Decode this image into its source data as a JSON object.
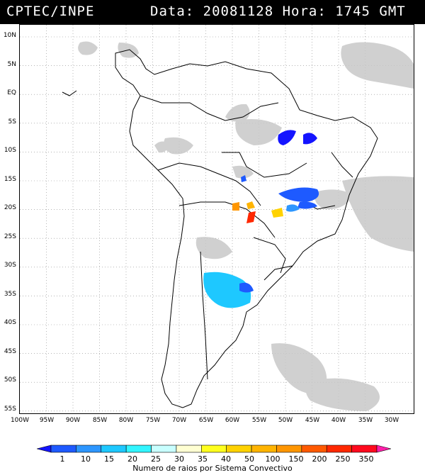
{
  "header": {
    "source": "CPTEC/INPE",
    "datetime": "Data: 20081128 Hora: 1745 GMT"
  },
  "map": {
    "lat_labels": [
      "10N",
      "5N",
      "EQ",
      "5S",
      "10S",
      "15S",
      "20S",
      "25S",
      "30S",
      "35S",
      "40S",
      "45S",
      "50S",
      "55S"
    ],
    "lon_labels": [
      "100W",
      "95W",
      "90W",
      "85W",
      "80W",
      "75W",
      "70W",
      "65W",
      "60W",
      "55W",
      "50W",
      "45W",
      "40W",
      "35W",
      "30W"
    ],
    "grid": "dotted",
    "cloud_color": "#c8c8c8",
    "coastline_color": "#000000"
  },
  "legend": {
    "values": [
      "1",
      "10",
      "15",
      "20",
      "25",
      "30",
      "35",
      "40",
      "50",
      "100",
      "150",
      "200",
      "250",
      "350"
    ],
    "colors": [
      "#1414ff",
      "#1e5aff",
      "#2d96ff",
      "#1ec8ff",
      "#32f5ff",
      "#c8ffff",
      "#ffffd2",
      "#ffff1e",
      "#ffd200",
      "#ffb400",
      "#ff9600",
      "#ff5a00",
      "#ff2800",
      "#ff0a1e",
      "#ff1eaa"
    ],
    "title": "Numero de raios por Sistema Convectivo"
  }
}
